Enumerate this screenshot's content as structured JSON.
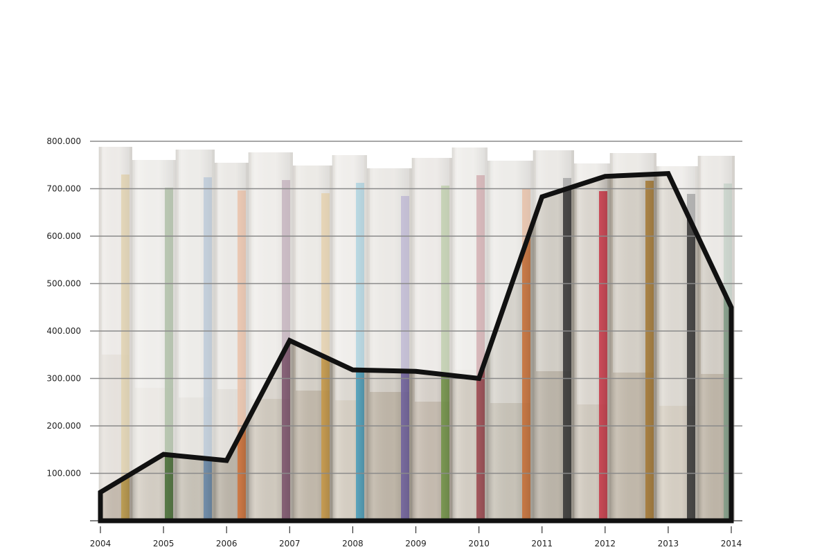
{
  "chart_data": {
    "type": "area",
    "title": "",
    "xlabel": "",
    "ylabel": "",
    "x": [
      "2004",
      "2005",
      "2006",
      "2007",
      "2008",
      "2009",
      "2010",
      "2011",
      "2012",
      "2013",
      "2014"
    ],
    "values": [
      60000,
      140000,
      127000,
      380000,
      318000,
      315000,
      300000,
      683000,
      726000,
      732000,
      450000
    ],
    "ylim": [
      0,
      800000
    ],
    "yticks": [
      100000,
      200000,
      300000,
      400000,
      500000,
      600000,
      700000,
      800000
    ],
    "ytick_labels": [
      "100.000",
      "200.000",
      "300.000",
      "400.000",
      "500.000",
      "600.000",
      "700.000",
      "800.000"
    ],
    "grid": true,
    "background": "photo of book spines (faded), fully opaque below the line",
    "colors": {
      "line": "#111111",
      "grid": "#8a8a8a",
      "axis": "#555555"
    }
  }
}
